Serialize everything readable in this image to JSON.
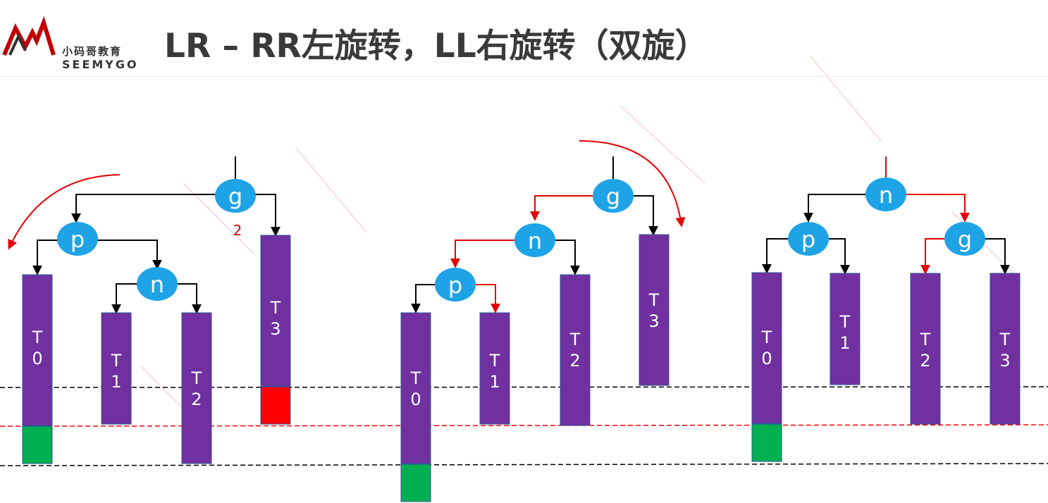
{
  "logo": {
    "chinese": "小码哥教育",
    "brand": "SEEMYGO"
  },
  "title": "LR – RR左旋转，LL右旋转（双旋）",
  "colors": {
    "node_fill": "#1ea3e6",
    "subtree_fill": "#7030a0",
    "highlight_red": "#ff0000",
    "highlight_green": "#00b050",
    "edge_black": "#000000",
    "edge_red": "#e60000"
  },
  "stages": [
    {
      "nodes": [
        "g",
        "p",
        "n"
      ],
      "subtrees": [
        "T 0",
        "T 1",
        "T 2",
        "T 3"
      ],
      "imbalance_label": "2"
    },
    {
      "nodes": [
        "g",
        "n",
        "p"
      ],
      "subtrees": [
        "T 0",
        "T 1",
        "T 2",
        "T 3"
      ]
    },
    {
      "nodes": [
        "n",
        "p",
        "g"
      ],
      "subtrees": [
        "T 0",
        "T 1",
        "T 2",
        "T 3"
      ]
    }
  ]
}
